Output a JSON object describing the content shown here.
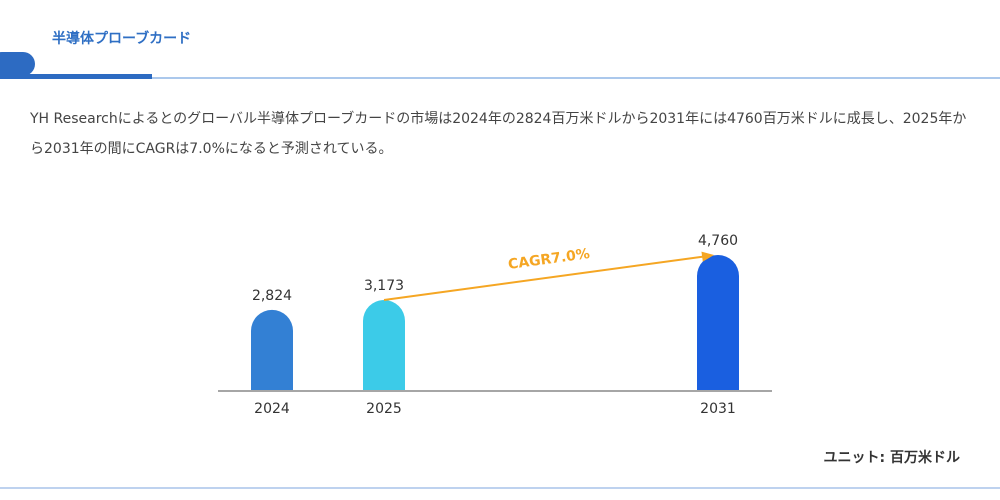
{
  "header": {
    "title": "半導体プローブカード"
  },
  "description": "YH Researchによるとのグローバル半導体プローブカードの市場は2024年の2824百万米ドルから2031年には4760百万米ドルに成長し、2025年から2031年の間にCAGRは7.0%になると予測されている。",
  "chart_data": {
    "type": "bar",
    "categories": [
      "2024",
      "2025",
      "2031"
    ],
    "values": [
      2824,
      3173,
      4760
    ],
    "value_labels": [
      "2,824",
      "3,173",
      "4,760"
    ],
    "colors": [
      "#3380d4",
      "#3ccbe8",
      "#1a5fe0"
    ],
    "annotation": "CAGR7.0%",
    "annotation_color": "#f5a623",
    "unit_label": "ユニット: 百万米ドル"
  }
}
